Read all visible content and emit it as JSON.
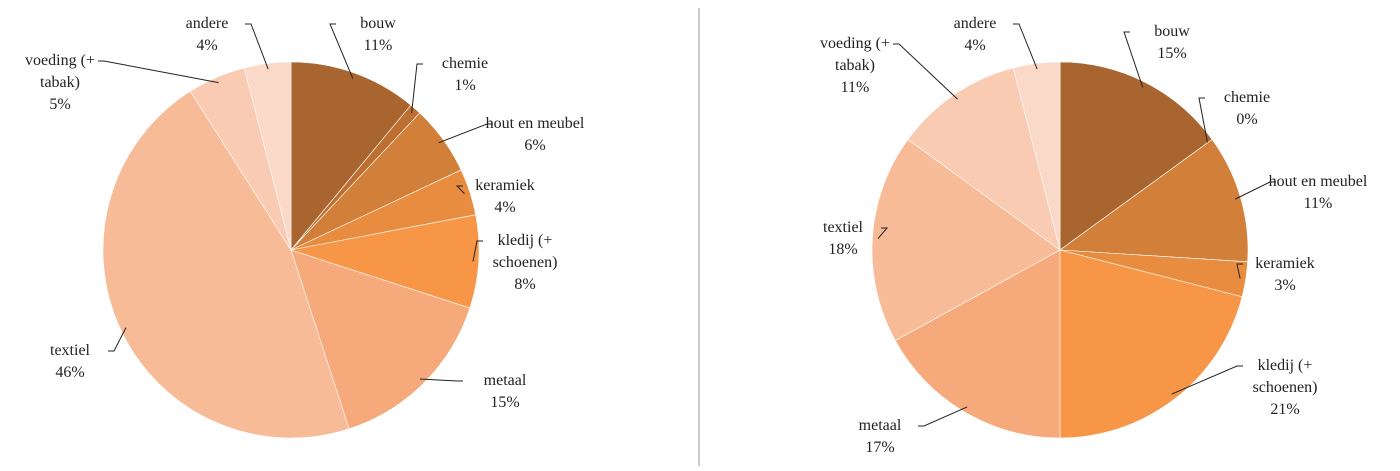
{
  "chart_data": [
    {
      "type": "pie",
      "categories": [
        "bouw",
        "chemie",
        "hout en meubel",
        "keramiek",
        "kledij (+\nschoenen)",
        "metaal",
        "textiel",
        "voeding (+\ntabak)",
        "andere"
      ],
      "values": [
        11,
        1,
        6,
        4,
        8,
        15,
        46,
        5,
        4
      ],
      "value_labels": [
        "11%",
        "1%",
        "6%",
        "4%",
        "8%",
        "15%",
        "46%",
        "5%",
        "4%"
      ],
      "colors": [
        "#a9652f",
        "#bd6f31",
        "#d27f3a",
        "#e88c40",
        "#f79646",
        "#f6aa7b",
        "#f7bb98",
        "#f8cbb2",
        "#fad9c9"
      ]
    },
    {
      "type": "pie",
      "categories": [
        "bouw",
        "chemie",
        "hout en meubel",
        "keramiek",
        "kledij (+\nschoenen)",
        "metaal",
        "textiel",
        "voeding (+\ntabak)",
        "andere"
      ],
      "values": [
        15,
        0,
        11,
        3,
        21,
        17,
        18,
        11,
        4
      ],
      "value_labels": [
        "15%",
        "0%",
        "11%",
        "3%",
        "21%",
        "17%",
        "18%",
        "11%",
        "4%"
      ],
      "colors": [
        "#a9652f",
        "#bd6f31",
        "#d27f3a",
        "#e88c40",
        "#f79646",
        "#f6aa7b",
        "#f7bb98",
        "#f8cbb2",
        "#fad9c9"
      ]
    }
  ]
}
